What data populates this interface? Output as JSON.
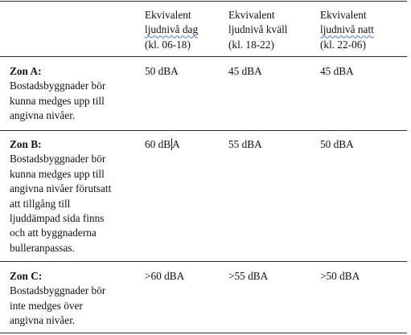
{
  "header": {
    "col_day": {
      "line1": "Ekvivalent",
      "line2": "ljudnivå dag",
      "line3": "(kl. 06-18)"
    },
    "col_evening": {
      "line1": "Ekvivalent",
      "line2": "ljudnivå kväll",
      "line3": "(kl. 18-22)"
    },
    "col_night": {
      "line1": "Ekvivalent",
      "line2": "ljudnivå natt",
      "line3": "(kl. 22-06)"
    }
  },
  "rows": [
    {
      "zone": "Zon A:",
      "description": [
        "Bostadsbyggnader bör",
        "kunna medges upp till",
        "angivna nivåer."
      ],
      "day": "50 dBA",
      "evening": "45 dBA",
      "night": "45 dBA"
    },
    {
      "zone": "Zon B:",
      "description": [
        "Bostadsbyggnader bör",
        "kunna medges upp till",
        "angivna nivåer förutsatt",
        "att tillgång till",
        "ljuddämpad sida finns",
        "och att byggnaderna",
        "bulleranpassas."
      ],
      "day_before_caret": "60 dB",
      "day_after_caret": "A",
      "evening": "55 dBA",
      "night": "50 dBA"
    },
    {
      "zone": "Zon C:",
      "description": [
        "Bostadsbyggnader bör",
        "inte medges över",
        "angivna nivåer."
      ],
      "day": ">60 dBA",
      "evening": ">55 dBA",
      "night": ">50 dBA"
    }
  ]
}
